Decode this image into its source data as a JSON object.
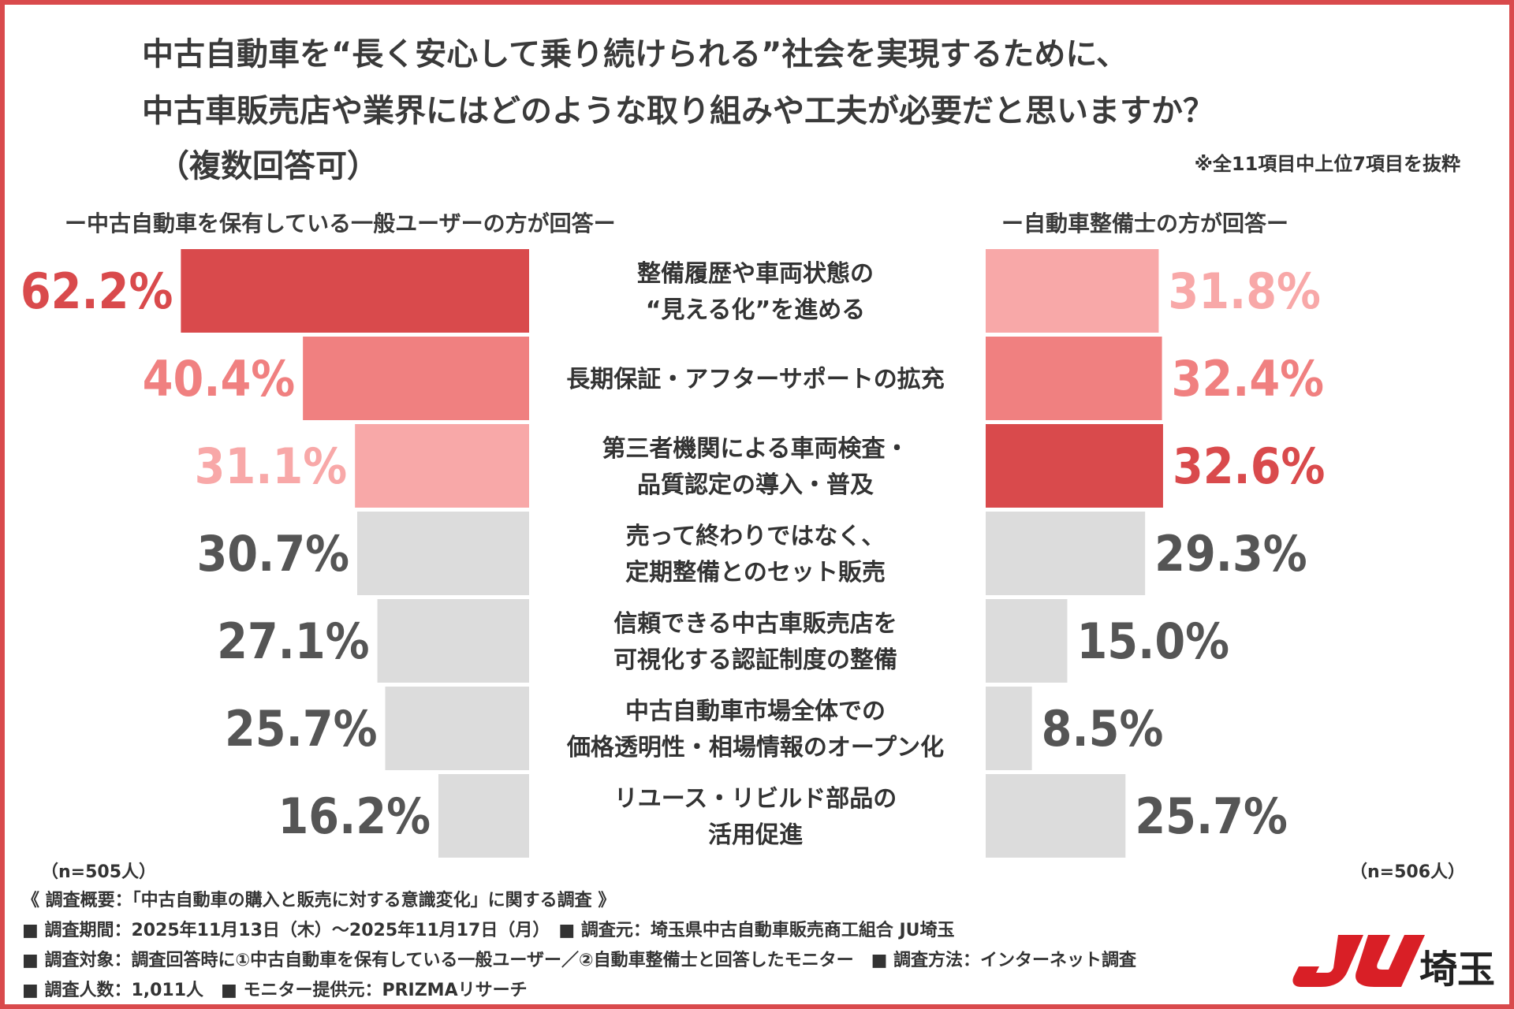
{
  "title": {
    "line1": "中古自動車を“長く安心して乗り続けられる”社会を実現するために、",
    "line2": "中古車販売店や業界にはどのような取り組みや工夫が必要だと思いますか？",
    "line3": "（複数回答可）"
  },
  "note": "※全11項目中上位7項目を抜粋",
  "chart_data": {
    "type": "bar",
    "orientation": "horizontal-butterfly",
    "categories": [
      [
        "整備履歴や車両状態の",
        "“見える化”を進める"
      ],
      [
        "長期保証・アフターサポートの拡充"
      ],
      [
        "第三者機関による車両検査・",
        "品質認定の導入・普及"
      ],
      [
        "売って終わりではなく、",
        "定期整備とのセット販売"
      ],
      [
        "信頼できる中古車販売店を",
        "可視化する認証制度の整備"
      ],
      [
        "中古自動車市場全体での",
        "価格透明性・相場情報のオープン化"
      ],
      [
        "リユース・リビルド部品の",
        "活用促進"
      ]
    ],
    "series": [
      {
        "name": "ー中古自動車を保有している一般ユーザーの方が回答ー",
        "n": "（n=505人）",
        "values": [
          62.2,
          40.4,
          31.1,
          30.7,
          27.1,
          25.7,
          16.2
        ],
        "labels": [
          "62.2%",
          "40.4%",
          "31.1%",
          "30.7%",
          "27.1%",
          "25.7%",
          "16.2%"
        ],
        "ranks": [
          1,
          2,
          3,
          0,
          0,
          0,
          0
        ]
      },
      {
        "name": "ー自動車整備士の方が回答ー",
        "n": "（n=506人）",
        "values": [
          31.8,
          32.4,
          32.6,
          29.3,
          15.0,
          8.5,
          25.7
        ],
        "labels": [
          "31.8%",
          "32.4%",
          "32.6%",
          "29.3%",
          "15.0%",
          "8.5%",
          "25.7%"
        ],
        "ranks": [
          3,
          2,
          1,
          0,
          0,
          0,
          0
        ]
      }
    ],
    "colors": {
      "rank1": "#d94a4c",
      "rank2": "#f08080",
      "rank3": "#f8a8a8",
      "other": "#dcdcdc",
      "label_other": "#555555"
    }
  },
  "footer": {
    "heading": "《 調査概要：「中古自動車の購入と販売に対する意識変化」に関する調査 》",
    "line1": "■ 調査期間：2025年11月13日（木）～2025年11月17日（月）　■ 調査元：埼玉県中古自動車販売商工組合 JU埼玉",
    "line2": "■ 調査対象：調査回答時に①中古自動車を保有している一般ユーザー／②自動車整備士と回答したモニター　■ 調査方法：インターネット調査",
    "line3": "■ 調査人数：1,011人　■ モニター提供元：PRIZMAリサーチ"
  },
  "logo": {
    "mark": "JU",
    "text": "埼玉",
    "color": "#d91f26"
  }
}
